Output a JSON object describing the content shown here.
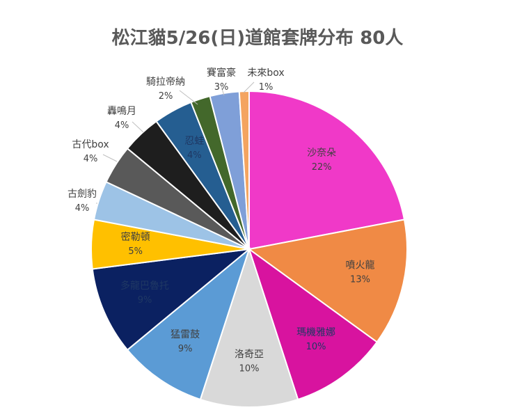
{
  "chart_data": {
    "type": "pie",
    "title": "松江貓5/26(日)道館套牌分布 80人",
    "slices": [
      {
        "label": "沙奈朵",
        "value": 22,
        "pct": "22%",
        "color": "#F039C8"
      },
      {
        "label": "噴火龍",
        "value": 13,
        "pct": "13%",
        "color": "#F08A45"
      },
      {
        "label": "瑪機雅娜",
        "value": 10,
        "pct": "10%",
        "color": "#D8139F"
      },
      {
        "label": "洛奇亞",
        "value": 10,
        "pct": "10%",
        "color": "#D9D9D9"
      },
      {
        "label": "猛雷鼓",
        "value": 9,
        "pct": "9%",
        "color": "#5B9BD5"
      },
      {
        "label": "多龍巴魯托",
        "value": 9,
        "pct": "9%",
        "color": "#0B2161"
      },
      {
        "label": "密勒頓",
        "value": 5,
        "pct": "5%",
        "color": "#FFC000"
      },
      {
        "label": "古劍豹",
        "value": 4,
        "pct": "4%",
        "color": "#9DC3E6"
      },
      {
        "label": "古代box",
        "value": 4,
        "pct": "4%",
        "color": "#595959"
      },
      {
        "label": "轟鳴月",
        "value": 4,
        "pct": "4%",
        "color": "#1E1E1E"
      },
      {
        "label": "忍蛙",
        "value": 4,
        "pct": "4%",
        "color": "#255E91"
      },
      {
        "label": "騎拉帝納",
        "value": 2,
        "pct": "2%",
        "color": "#43682B"
      },
      {
        "label": "賽富豪",
        "value": 3,
        "pct": "3%",
        "color": "#7F9FD8"
      },
      {
        "label": "未來box",
        "value": 1,
        "pct": "1%",
        "color": "#F4A460"
      }
    ]
  }
}
